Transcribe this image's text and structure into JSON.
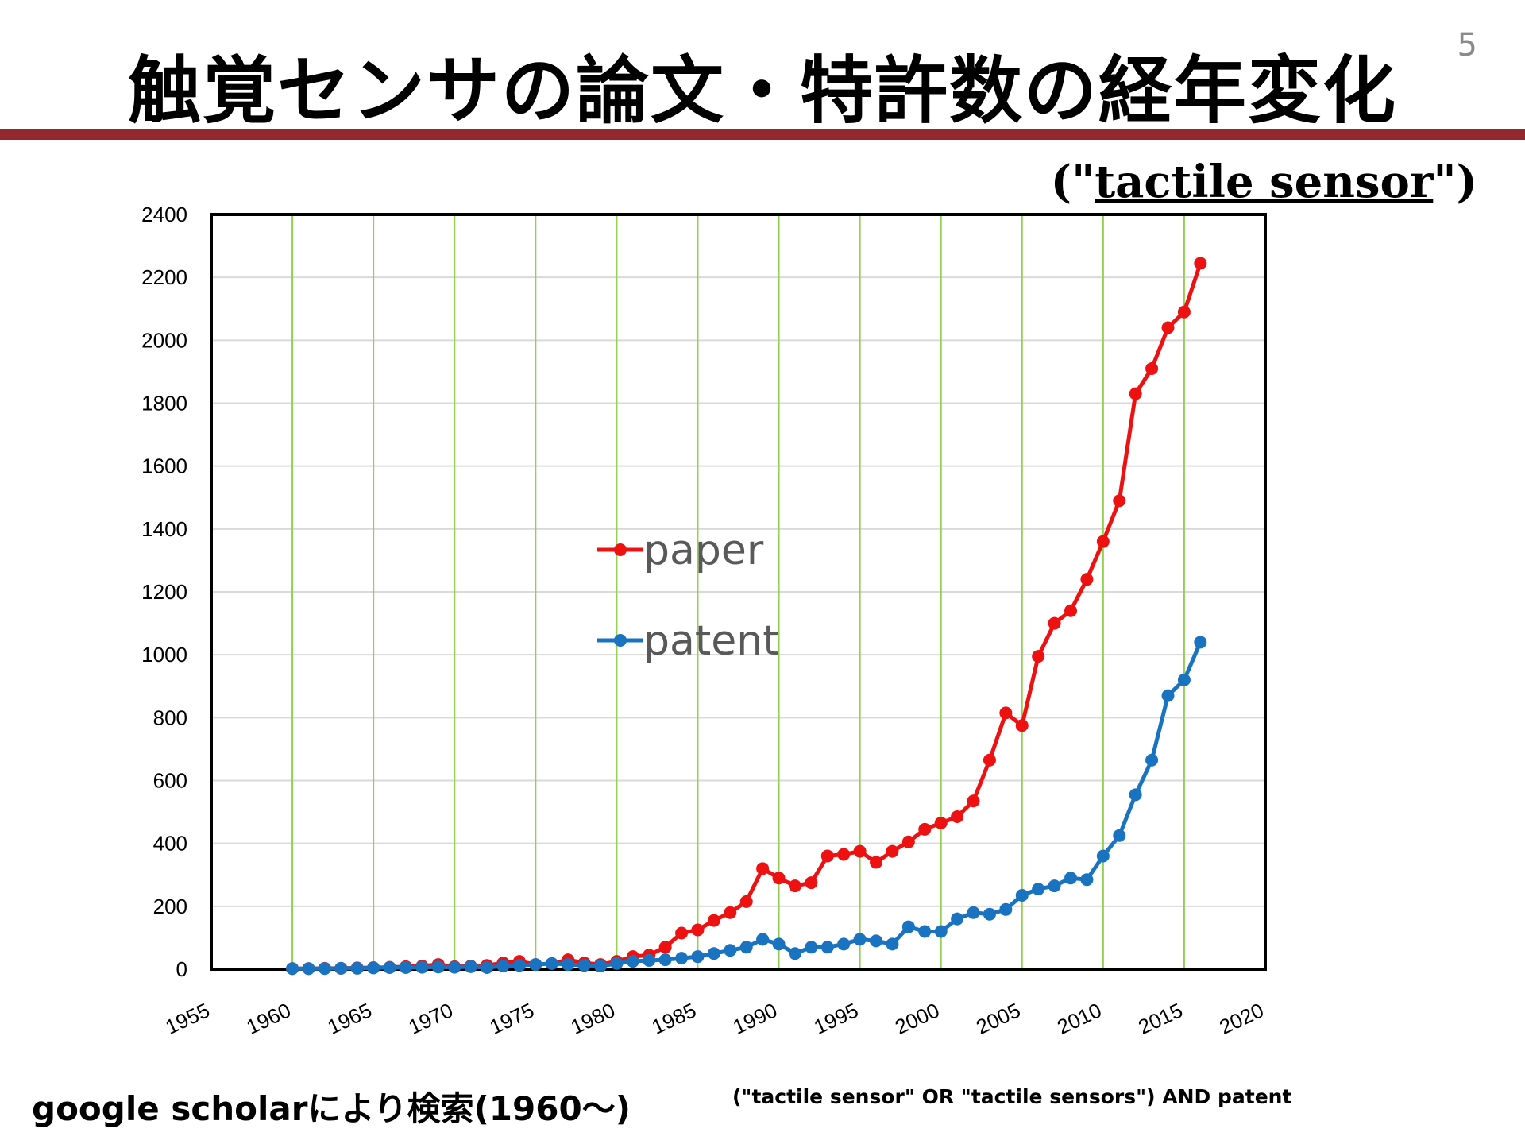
{
  "slide": {
    "title": "触覚センサの論文・特許数の経年変化",
    "page_number": "5",
    "query_open": "(\"",
    "query_term": "tactile sensor",
    "query_close": "\")",
    "footnote_source": "google scholarにより検索(1960～)",
    "footnote_query": "(\"tactile sensor\" OR \"tactile sensors\") AND patent"
  },
  "colors": {
    "paper": "#ee1111",
    "patent": "#1a73c0",
    "vertical_grid": "#92d050",
    "horizontal_grid": "#d9d9d9",
    "title_rule": "#93292f"
  },
  "chart_data": {
    "type": "line",
    "title": "",
    "xlabel": "",
    "ylabel": "",
    "xlim": [
      1955,
      2020
    ],
    "ylim": [
      0,
      2400
    ],
    "x_ticks": [
      1955,
      1960,
      1965,
      1970,
      1975,
      1980,
      1985,
      1990,
      1995,
      2000,
      2005,
      2010,
      2015,
      2020
    ],
    "y_ticks": [
      0,
      200,
      400,
      600,
      800,
      1000,
      1200,
      1400,
      1600,
      1800,
      2000,
      2200,
      2400
    ],
    "vertical_grid": true,
    "horizontal_grid": true,
    "legend_position": "center",
    "x": [
      1960,
      1961,
      1962,
      1963,
      1964,
      1965,
      1966,
      1967,
      1968,
      1969,
      1970,
      1971,
      1972,
      1973,
      1974,
      1975,
      1976,
      1977,
      1978,
      1979,
      1980,
      1981,
      1982,
      1983,
      1984,
      1985,
      1986,
      1987,
      1988,
      1989,
      1990,
      1991,
      1992,
      1993,
      1994,
      1995,
      1996,
      1997,
      1998,
      1999,
      2000,
      2001,
      2002,
      2003,
      2004,
      2005,
      2006,
      2007,
      2008,
      2009,
      2010,
      2011,
      2012,
      2013,
      2014,
      2015,
      2016
    ],
    "series": [
      {
        "name": "paper",
        "color": "#ee1111",
        "values": [
          2,
          2,
          3,
          3,
          4,
          5,
          6,
          8,
          10,
          15,
          8,
          10,
          12,
          20,
          25,
          15,
          18,
          30,
          20,
          15,
          25,
          40,
          45,
          70,
          115,
          125,
          155,
          180,
          215,
          320,
          290,
          265,
          275,
          360,
          365,
          375,
          340,
          375,
          405,
          445,
          465,
          485,
          535,
          665,
          815,
          775,
          995,
          1100,
          1140,
          1240,
          1360,
          1490,
          1830,
          1910,
          2040,
          2090,
          2245
        ]
      },
      {
        "name": "patent",
        "color": "#1a73c0",
        "values": [
          2,
          2,
          2,
          3,
          3,
          4,
          5,
          5,
          6,
          7,
          6,
          8,
          5,
          10,
          12,
          15,
          18,
          15,
          12,
          10,
          18,
          25,
          28,
          30,
          35,
          40,
          50,
          60,
          70,
          95,
          80,
          50,
          70,
          70,
          80,
          95,
          90,
          80,
          135,
          120,
          120,
          160,
          180,
          175,
          190,
          235,
          255,
          265,
          290,
          285,
          360,
          425,
          555,
          665,
          870,
          920,
          1040
        ]
      }
    ]
  }
}
